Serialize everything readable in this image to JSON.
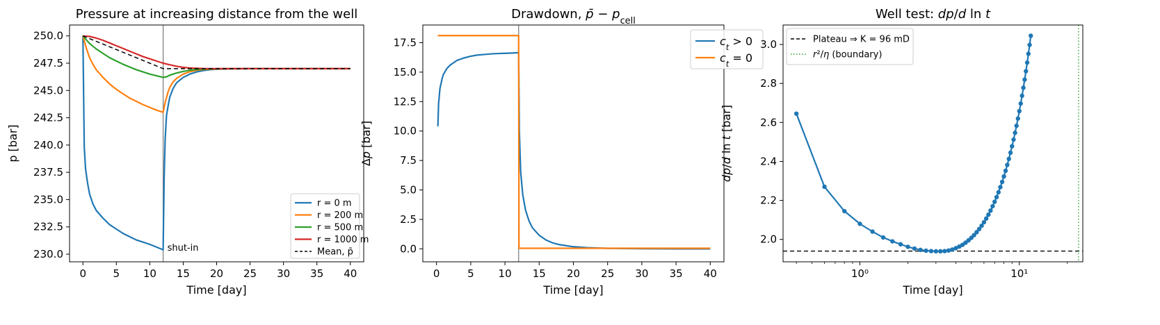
{
  "chart_data": [
    {
      "type": "line",
      "title": "Pressure at increasing distance from the well",
      "xlabel": "Time [day]",
      "ylabel": "p [bar]",
      "xlim": [
        -2,
        42
      ],
      "ylim": [
        229.3,
        251.0
      ],
      "xticks": [
        0,
        5,
        10,
        15,
        20,
        25,
        30,
        35,
        40
      ],
      "xtick_labels": [
        "0",
        "5",
        "10",
        "15",
        "20",
        "25",
        "30",
        "35",
        "40"
      ],
      "yticks": [
        230.0,
        232.5,
        235.0,
        237.5,
        240.0,
        242.5,
        245.0,
        247.5,
        250.0
      ],
      "ytick_labels": [
        "230.0",
        "232.5",
        "235.0",
        "237.5",
        "240.0",
        "242.5",
        "245.0",
        "247.5",
        "250.0"
      ],
      "shutin_day": 12,
      "annotation": "shut-in",
      "legend_position": "lower-right",
      "series": [
        {
          "name": "r = 0 m",
          "color": "#1f77b4",
          "dash": "",
          "x": [
            0,
            0.2,
            0.4,
            0.7,
            1,
            1.5,
            2,
            3,
            4,
            5,
            6,
            7,
            8,
            9,
            10,
            11,
            12,
            12.15,
            12.3,
            12.5,
            12.8,
            13,
            13.5,
            14,
            15,
            16,
            17,
            18,
            19,
            20,
            22,
            25,
            30,
            35,
            40
          ],
          "y": [
            250.0,
            239.8,
            237.8,
            236.5,
            235.5,
            234.6,
            234.0,
            233.3,
            232.7,
            232.3,
            231.9,
            231.6,
            231.3,
            231.1,
            230.9,
            230.65,
            230.4,
            237.0,
            240.5,
            242.7,
            243.8,
            244.4,
            245.2,
            245.7,
            246.2,
            246.5,
            246.7,
            246.82,
            246.9,
            246.95,
            246.98,
            247.0,
            247.0,
            247.0,
            247.0
          ]
        },
        {
          "name": "r = 200 m",
          "color": "#ff7f0e",
          "dash": "",
          "x": [
            0,
            0.5,
            1,
            1.5,
            2,
            3,
            4,
            5,
            6,
            7,
            8,
            9,
            10,
            11,
            12,
            12.3,
            12.7,
            13,
            13.5,
            14,
            15,
            16,
            17,
            18,
            20,
            22,
            25,
            30,
            35,
            40
          ],
          "y": [
            250.0,
            248.9,
            248.0,
            247.4,
            246.9,
            246.2,
            245.6,
            245.1,
            244.7,
            244.3,
            244.0,
            243.7,
            243.45,
            243.2,
            243.0,
            243.9,
            244.8,
            245.3,
            245.8,
            246.1,
            246.5,
            246.72,
            246.85,
            246.92,
            246.97,
            246.99,
            247.0,
            247.0,
            247.0,
            247.0
          ]
        },
        {
          "name": "r = 500 m",
          "color": "#2ca02c",
          "dash": "",
          "x": [
            0,
            1,
            2,
            3,
            4,
            5,
            6,
            7,
            8,
            9,
            10,
            11,
            12,
            12.5,
            13,
            13.5,
            14,
            15,
            16,
            17,
            18,
            20,
            22,
            25,
            30,
            35,
            40
          ],
          "y": [
            250.0,
            249.3,
            248.8,
            248.4,
            248.0,
            247.7,
            247.4,
            247.15,
            246.9,
            246.7,
            246.5,
            246.35,
            246.2,
            246.25,
            246.4,
            246.5,
            246.6,
            246.75,
            246.85,
            246.92,
            246.96,
            246.99,
            247.0,
            247.0,
            247.0,
            247.0,
            247.0
          ]
        },
        {
          "name": "r = 1000 m",
          "color": "#d62728",
          "dash": "",
          "x": [
            0,
            1,
            2,
            3,
            4,
            5,
            6,
            7,
            8,
            9,
            10,
            11,
            12,
            13,
            14,
            15,
            16,
            17,
            18,
            20,
            22,
            25,
            30,
            35,
            40
          ],
          "y": [
            250.0,
            249.95,
            249.8,
            249.6,
            249.35,
            249.1,
            248.85,
            248.6,
            248.35,
            248.1,
            247.9,
            247.7,
            247.5,
            247.35,
            247.22,
            247.12,
            247.06,
            247.03,
            247.01,
            247.0,
            247.0,
            247.0,
            247.0,
            247.0,
            247.0
          ]
        },
        {
          "name": "Mean, p̄",
          "color": "#000000",
          "dash": "6,4",
          "x": [
            0,
            2,
            4,
            6,
            8,
            10,
            12,
            14,
            16,
            20,
            25,
            30,
            35,
            40
          ],
          "y": [
            250.0,
            249.5,
            249.0,
            248.5,
            248.0,
            247.5,
            247.0,
            247.0,
            247.0,
            247.0,
            247.0,
            247.0,
            247.0,
            247.0
          ]
        }
      ]
    },
    {
      "type": "line",
      "title": "Drawdown, p̄ − p",
      "title_subscript": "cell",
      "xlabel": "Time [day]",
      "ylabel": "Δp [bar]",
      "xlim": [
        -2,
        42
      ],
      "ylim": [
        -1.1,
        19.0
      ],
      "xticks": [
        0,
        5,
        10,
        15,
        20,
        25,
        30,
        35,
        40
      ],
      "xtick_labels": [
        "0",
        "5",
        "10",
        "15",
        "20",
        "25",
        "30",
        "35",
        "40"
      ],
      "yticks": [
        0.0,
        2.5,
        5.0,
        7.5,
        10.0,
        12.5,
        15.0,
        17.5
      ],
      "ytick_labels": [
        "0.0",
        "2.5",
        "5.0",
        "7.5",
        "10.0",
        "12.5",
        "15.0",
        "17.5"
      ],
      "shutin_day": 12,
      "legend_position": "upper-right",
      "series": [
        {
          "name": "c_t > 0",
          "legend_main": "c",
          "legend_sub": "t",
          "legend_rest": " > 0",
          "color": "#1f77b4",
          "x": [
            0.2,
            0.3,
            0.5,
            0.8,
            1,
            1.5,
            2,
            3,
            4,
            5,
            6,
            7,
            8,
            9,
            10,
            11,
            12,
            12.1,
            12.3,
            12.6,
            13,
            13.5,
            14,
            15,
            16,
            17,
            18,
            20,
            22,
            25,
            30,
            35,
            40
          ],
          "y": [
            10.4,
            12.3,
            13.6,
            14.4,
            14.8,
            15.3,
            15.6,
            16.0,
            16.2,
            16.35,
            16.45,
            16.5,
            16.55,
            16.58,
            16.6,
            16.62,
            16.65,
            10.0,
            6.5,
            4.6,
            3.3,
            2.4,
            1.8,
            1.15,
            0.75,
            0.5,
            0.35,
            0.18,
            0.1,
            0.04,
            0.01,
            0.0,
            0.0
          ]
        },
        {
          "name": "c_t = 0",
          "legend_main": "c",
          "legend_sub": "t",
          "legend_rest": " = 0",
          "color": "#ff7f0e",
          "x": [
            0.2,
            12,
            12.05,
            40
          ],
          "y": [
            18.1,
            18.1,
            0.05,
            0.05
          ]
        }
      ]
    },
    {
      "type": "scatter",
      "title": "Well test: dp/d ln t",
      "xlabel": "Time [day]",
      "ylabel": "dp/d ln t [bar]",
      "xscale": "log",
      "xlim": [
        0.33,
        25
      ],
      "ylim": [
        1.885,
        3.1
      ],
      "xticks": [
        1,
        10
      ],
      "xtick_labels": [
        "10⁰",
        "10¹"
      ],
      "yticks": [
        2.0,
        2.2,
        2.4,
        2.6,
        2.8,
        3.0
      ],
      "ytick_labels": [
        "2.0",
        "2.2",
        "2.4",
        "2.6",
        "2.8",
        "3.0"
      ],
      "plateau": 1.94,
      "boundary_day": 23.5,
      "legend_position": "upper-left",
      "legend": [
        {
          "label": "Plateau ⇒ K = 96 mD",
          "color": "#000000",
          "style": "dashed"
        },
        {
          "label": "r²/η (boundary)",
          "color": "#2ca02c",
          "style": "dotted"
        }
      ],
      "series": [
        {
          "color": "#1f77b4",
          "x": [
            0.4,
            0.6,
            0.8,
            1.0,
            1.2,
            1.4,
            1.6,
            1.8,
            2.0,
            2.2,
            2.4,
            2.6,
            2.8,
            3.0,
            3.2,
            3.4,
            3.6,
            3.8,
            4.0,
            4.2,
            4.4,
            4.6,
            4.8,
            5.0,
            5.2,
            5.4,
            5.6,
            5.8,
            6.0,
            6.2,
            6.4,
            6.6,
            6.8,
            7.0,
            7.2,
            7.4,
            7.6,
            7.8,
            8.0,
            8.2,
            8.4,
            8.6,
            8.8,
            9.0,
            9.2,
            9.4,
            9.6,
            9.8,
            10.0,
            10.2,
            10.4,
            10.6,
            10.8,
            11.0,
            11.2,
            11.4,
            11.6,
            11.8
          ],
          "y": [
            2.645,
            2.27,
            2.145,
            2.08,
            2.04,
            2.01,
            1.99,
            1.975,
            1.962,
            1.953,
            1.946,
            1.942,
            1.94,
            1.939,
            1.939,
            1.94,
            1.943,
            1.948,
            1.955,
            1.963,
            1.972,
            1.983,
            1.995,
            2.008,
            2.022,
            2.037,
            2.053,
            2.07,
            2.088,
            2.107,
            2.127,
            2.148,
            2.17,
            2.193,
            2.217,
            2.242,
            2.268,
            2.295,
            2.323,
            2.352,
            2.382,
            2.413,
            2.445,
            2.478,
            2.512,
            2.547,
            2.583,
            2.62,
            2.658,
            2.697,
            2.737,
            2.778,
            2.82,
            2.863,
            2.907,
            2.952,
            2.998,
            3.045
          ]
        }
      ]
    }
  ]
}
